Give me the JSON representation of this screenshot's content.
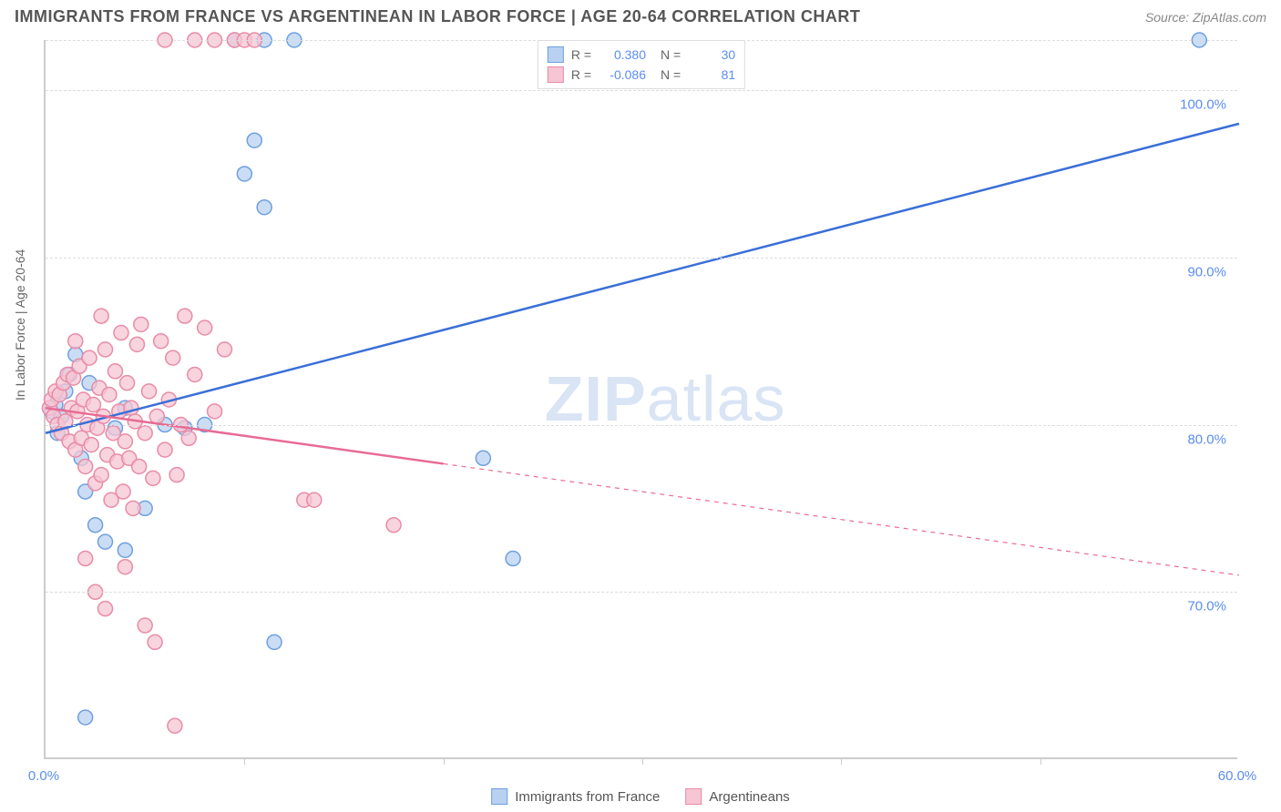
{
  "header": {
    "title": "IMMIGRANTS FROM FRANCE VS ARGENTINEAN IN LABOR FORCE | AGE 20-64 CORRELATION CHART",
    "source": "Source: ZipAtlas.com"
  },
  "chart": {
    "type": "scatter",
    "ylabel": "In Labor Force | Age 20-64",
    "xlim": [
      0,
      60
    ],
    "ylim": [
      60,
      103
    ],
    "xtick_labels": [
      {
        "v": 0,
        "label": "0.0%"
      },
      {
        "v": 60,
        "label": "60.0%"
      }
    ],
    "xtick_marks": [
      10,
      20,
      30,
      40,
      50
    ],
    "ytick_labels": [
      {
        "v": 70,
        "label": "70.0%"
      },
      {
        "v": 80,
        "label": "80.0%"
      },
      {
        "v": 90,
        "label": "90.0%"
      },
      {
        "v": 100,
        "label": "100.0%"
      }
    ],
    "grid_y": [
      70,
      80,
      90,
      100,
      103
    ],
    "grid_color": "#dddddd",
    "background_color": "#ffffff",
    "watermark": "ZIPatlas",
    "series": [
      {
        "name": "Immigrants from France",
        "color_fill": "#b9d1f0",
        "color_stroke": "#6ea0e0",
        "line_color": "#3a6fd8",
        "marker_radius": 8,
        "stats": {
          "R": "0.380",
          "N": "30"
        },
        "trend": {
          "x1": 0,
          "y1": 79.5,
          "x2": 60,
          "y2": 98.0,
          "solid_to_x": 60
        },
        "points": [
          [
            0.3,
            80.8
          ],
          [
            0.5,
            81.2
          ],
          [
            0.6,
            79.5
          ],
          [
            0.8,
            80.5
          ],
          [
            1.0,
            82.0
          ],
          [
            1.2,
            83.0
          ],
          [
            1.5,
            84.2
          ],
          [
            1.8,
            78.0
          ],
          [
            2.0,
            76.0
          ],
          [
            2.2,
            82.5
          ],
          [
            2.5,
            74.0
          ],
          [
            3.0,
            73.0
          ],
          [
            3.5,
            79.8
          ],
          [
            4.0,
            81.0
          ],
          [
            5.0,
            75.0
          ],
          [
            6.0,
            80.0
          ],
          [
            7.0,
            79.8
          ],
          [
            8.0,
            80.0
          ],
          [
            9.5,
            103.0
          ],
          [
            10.0,
            95.0
          ],
          [
            10.5,
            97.0
          ],
          [
            11.0,
            93.0
          ],
          [
            11.0,
            103.0
          ],
          [
            12.5,
            103.0
          ],
          [
            11.5,
            67.0
          ],
          [
            2.0,
            62.5
          ],
          [
            4.0,
            72.5
          ],
          [
            22.0,
            78.0
          ],
          [
            23.5,
            72.0
          ],
          [
            58.0,
            103.0
          ]
        ]
      },
      {
        "name": "Argentineans",
        "color_fill": "#f6c6d4",
        "color_stroke": "#e98ba6",
        "line_color": "#e76b93",
        "marker_radius": 8,
        "stats": {
          "R": "-0.086",
          "N": "81"
        },
        "trend": {
          "x1": 0,
          "y1": 81.0,
          "x2": 60,
          "y2": 71.0,
          "solid_to_x": 20
        },
        "points": [
          [
            0.2,
            81.0
          ],
          [
            0.3,
            81.5
          ],
          [
            0.4,
            80.5
          ],
          [
            0.5,
            82.0
          ],
          [
            0.6,
            80.0
          ],
          [
            0.7,
            81.8
          ],
          [
            0.8,
            79.5
          ],
          [
            0.9,
            82.5
          ],
          [
            1.0,
            80.2
          ],
          [
            1.1,
            83.0
          ],
          [
            1.2,
            79.0
          ],
          [
            1.3,
            81.0
          ],
          [
            1.4,
            82.8
          ],
          [
            1.5,
            78.5
          ],
          [
            1.6,
            80.8
          ],
          [
            1.7,
            83.5
          ],
          [
            1.8,
            79.2
          ],
          [
            1.9,
            81.5
          ],
          [
            2.0,
            77.5
          ],
          [
            2.1,
            80.0
          ],
          [
            2.2,
            84.0
          ],
          [
            2.3,
            78.8
          ],
          [
            2.4,
            81.2
          ],
          [
            2.5,
            76.5
          ],
          [
            2.6,
            79.8
          ],
          [
            2.7,
            82.2
          ],
          [
            2.8,
            77.0
          ],
          [
            2.9,
            80.5
          ],
          [
            3.0,
            84.5
          ],
          [
            3.1,
            78.2
          ],
          [
            3.2,
            81.8
          ],
          [
            3.3,
            75.5
          ],
          [
            3.4,
            79.5
          ],
          [
            3.5,
            83.2
          ],
          [
            3.6,
            77.8
          ],
          [
            3.7,
            80.8
          ],
          [
            3.8,
            85.5
          ],
          [
            3.9,
            76.0
          ],
          [
            4.0,
            79.0
          ],
          [
            4.1,
            82.5
          ],
          [
            4.2,
            78.0
          ],
          [
            4.3,
            81.0
          ],
          [
            4.4,
            75.0
          ],
          [
            4.5,
            80.2
          ],
          [
            4.6,
            84.8
          ],
          [
            4.7,
            77.5
          ],
          [
            4.8,
            86.0
          ],
          [
            5.0,
            79.5
          ],
          [
            5.2,
            82.0
          ],
          [
            5.4,
            76.8
          ],
          [
            5.6,
            80.5
          ],
          [
            5.8,
            85.0
          ],
          [
            6.0,
            78.5
          ],
          [
            6.2,
            81.5
          ],
          [
            6.4,
            84.0
          ],
          [
            6.6,
            77.0
          ],
          [
            6.8,
            80.0
          ],
          [
            7.0,
            86.5
          ],
          [
            7.2,
            79.2
          ],
          [
            7.5,
            83.0
          ],
          [
            8.0,
            85.8
          ],
          [
            8.5,
            80.8
          ],
          [
            9.0,
            84.5
          ],
          [
            2.0,
            72.0
          ],
          [
            2.5,
            70.0
          ],
          [
            3.0,
            69.0
          ],
          [
            4.0,
            71.5
          ],
          [
            5.0,
            68.0
          ],
          [
            5.5,
            67.0
          ],
          [
            6.0,
            103.0
          ],
          [
            7.5,
            103.0
          ],
          [
            8.5,
            103.0
          ],
          [
            9.5,
            103.0
          ],
          [
            10.0,
            103.0
          ],
          [
            10.5,
            103.0
          ],
          [
            13.0,
            75.5
          ],
          [
            13.5,
            75.5
          ],
          [
            17.5,
            74.0
          ],
          [
            6.5,
            62.0
          ],
          [
            1.5,
            85.0
          ],
          [
            2.8,
            86.5
          ]
        ]
      }
    ],
    "legend_top": {
      "r_label": "R =",
      "n_label": "N ="
    },
    "legend_bottom": [
      {
        "swatch_fill": "#b9d1f0",
        "swatch_stroke": "#6ea0e0",
        "label": "Immigrants from France"
      },
      {
        "swatch_fill": "#f6c6d4",
        "swatch_stroke": "#e98ba6",
        "label": "Argentineans"
      }
    ]
  }
}
